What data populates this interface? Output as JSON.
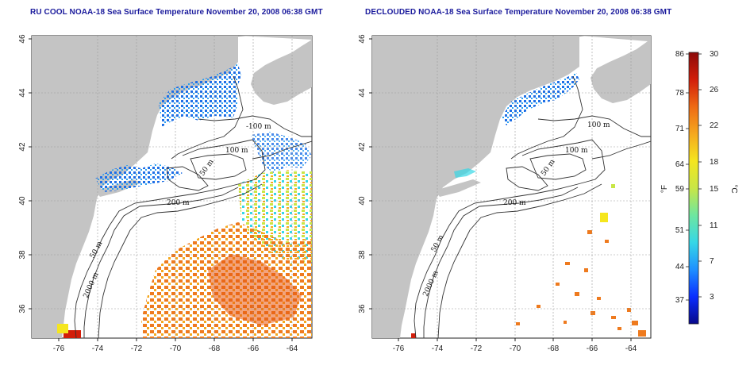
{
  "titles": {
    "left": "RU COOL NOAA-18 Sea Surface Temperature November 20, 2008 06:38 GMT",
    "right": "DECLOUDED NOAA-18 Sea Surface Temperature November 20, 2008 06:38 GMT"
  },
  "axes": {
    "x_ticks": [
      "-76",
      "-74",
      "-72",
      "-70",
      "-68",
      "-66",
      "-64"
    ],
    "y_ticks": [
      "46",
      "44",
      "42",
      "40",
      "38",
      "36"
    ]
  },
  "isobaths": {
    "left": [
      "-100 m",
      "100 m",
      "50 m",
      "200 m",
      "50 m",
      "2000 m"
    ],
    "right": [
      "100 m",
      "100 m",
      "50 m",
      "200 m",
      "50 m",
      "2000 m"
    ]
  },
  "colorbar": {
    "f_ticks": [
      "86",
      "78",
      "71",
      "64",
      "59",
      "51",
      "44",
      "37"
    ],
    "c_ticks": [
      "30",
      "26",
      "22",
      "18",
      "15",
      "11",
      "7",
      "3"
    ],
    "f_label": "°F",
    "c_label": "°C",
    "colors": [
      "#08088a",
      "#0a2dff",
      "#1e90ff",
      "#36d7e6",
      "#6ee6a0",
      "#c8e646",
      "#f5e61e",
      "#f5a81e",
      "#ee6a14",
      "#d21e0a",
      "#8c0a0a"
    ]
  },
  "colors": {
    "land": "#c4c4c4",
    "ocean": "#ffffff",
    "grid": "#9a9a9a",
    "isobath": "#333333"
  }
}
